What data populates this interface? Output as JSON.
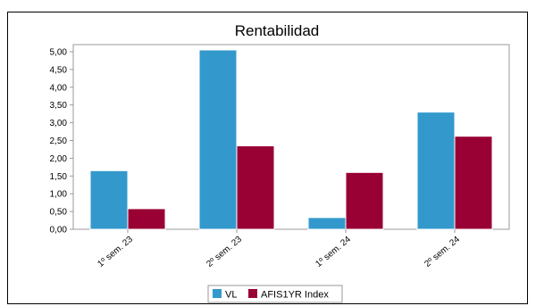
{
  "chart_data": {
    "type": "bar",
    "title": "Rentabilidad",
    "xlabel": "",
    "ylabel": "",
    "categories": [
      "1º sem. 23",
      "2º sem. 23",
      "1º sem. 24",
      "2º sem. 24"
    ],
    "series": [
      {
        "name": "VL",
        "values": [
          1.65,
          5.05,
          0.33,
          3.3
        ],
        "color": "#3399cc"
      },
      {
        "name": "AFIS1YR Index",
        "values": [
          0.58,
          2.35,
          1.6,
          2.62
        ],
        "color": "#990033"
      }
    ],
    "ylim": [
      0,
      5.2
    ],
    "yticks": [
      "0,00",
      "0,50",
      "1,00",
      "1,50",
      "2,00",
      "2,50",
      "3,00",
      "3,50",
      "4,00",
      "4,50",
      "5,00"
    ],
    "grid": false,
    "legend_position": "bottom-center"
  }
}
